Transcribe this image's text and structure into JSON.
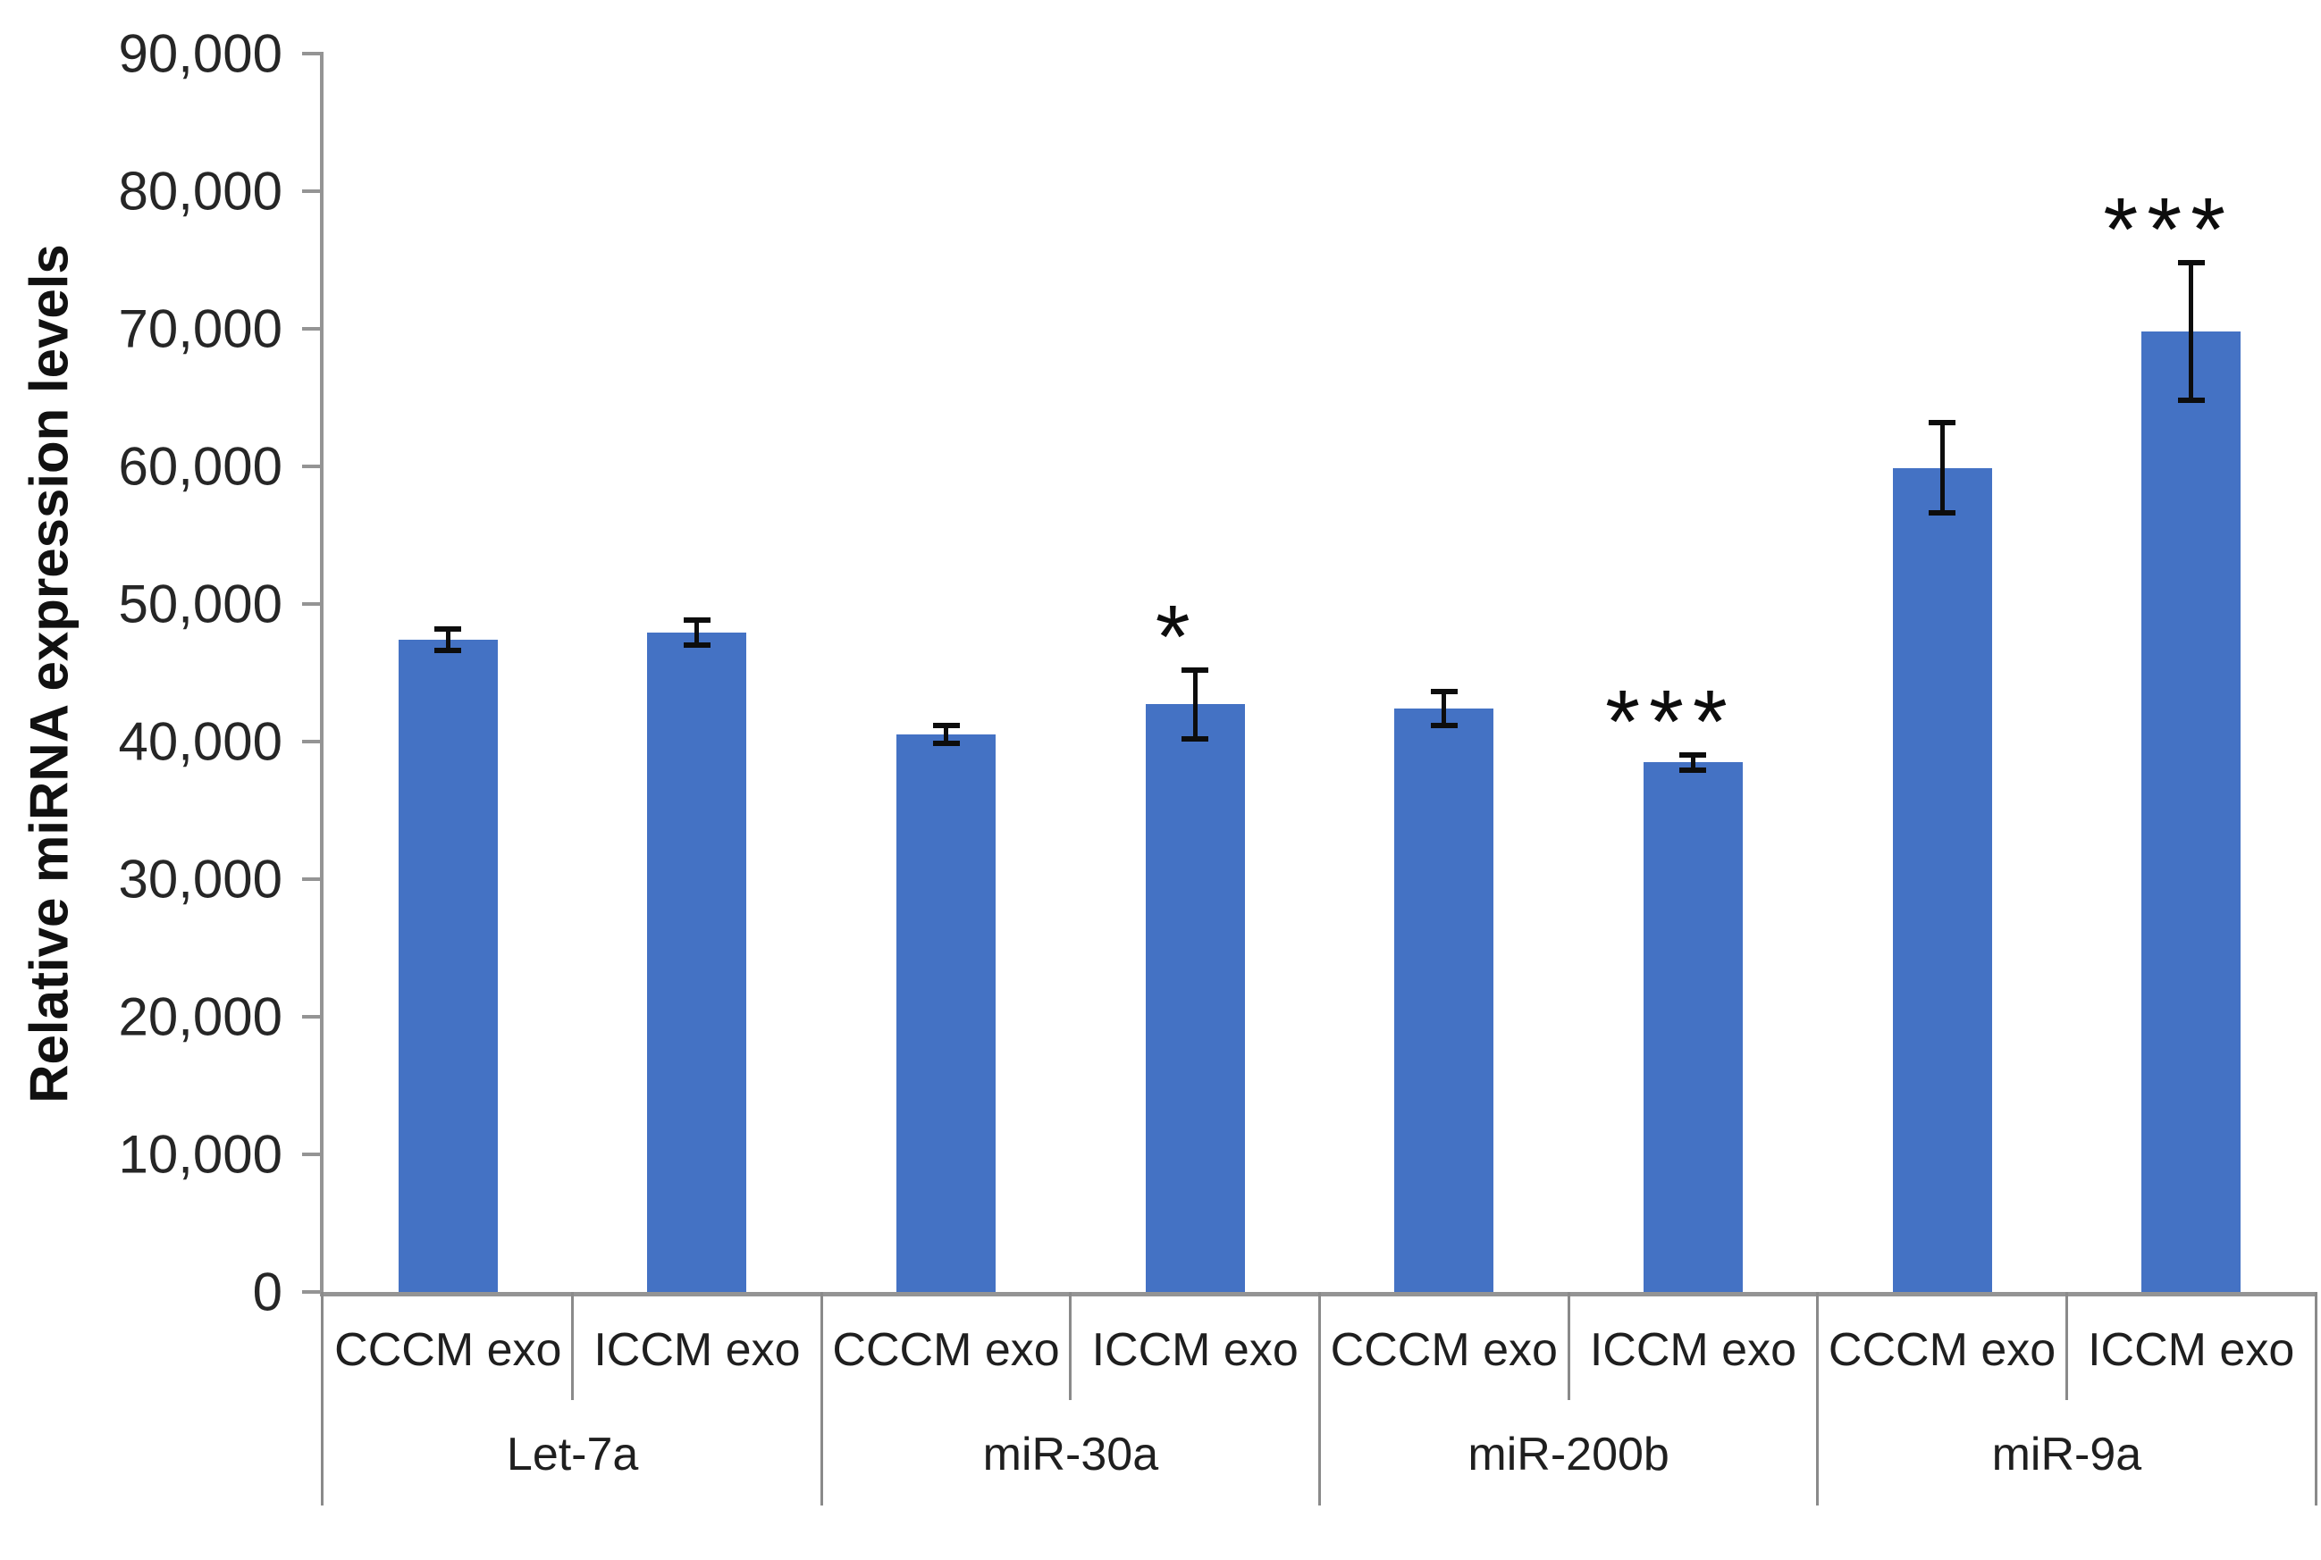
{
  "chart_data": {
    "type": "bar",
    "title": "",
    "xlabel": "",
    "ylabel": "Relative miRNA expression levels",
    "ylim": [
      0,
      90000
    ],
    "ytick_step": 10000,
    "ytick_labels": [
      "0",
      "10,000",
      "20,000",
      "30,000",
      "40,000",
      "50,000",
      "60,000",
      "70,000",
      "80,000",
      "90,000"
    ],
    "grid": "off",
    "legend": "none",
    "bar_color": "#4472C4",
    "error_bar_color": "#000000",
    "axis_color": "#949494",
    "significance_note_symbols": [
      "*",
      "***"
    ],
    "groups": [
      {
        "label": "Let-7a",
        "bars": [
          {
            "condition": "CCCM exo",
            "value": 47400,
            "error": 800,
            "sig": ""
          },
          {
            "condition": "ICCM exo",
            "value": 47900,
            "error": 900,
            "sig": ""
          }
        ]
      },
      {
        "label": "miR-30a",
        "bars": [
          {
            "condition": "CCCM exo",
            "value": 40500,
            "error": 650,
            "sig": ""
          },
          {
            "condition": "ICCM exo",
            "value": 42700,
            "error": 2500,
            "sig": "*"
          }
        ]
      },
      {
        "label": "miR-200b",
        "bars": [
          {
            "condition": "CCCM exo",
            "value": 42400,
            "error": 1250,
            "sig": ""
          },
          {
            "condition": "ICCM exo",
            "value": 38500,
            "error": 550,
            "sig": "***"
          }
        ]
      },
      {
        "label": "miR-9a",
        "bars": [
          {
            "condition": "CCCM exo",
            "value": 59900,
            "error": 3300,
            "sig": ""
          },
          {
            "condition": "ICCM exo",
            "value": 69800,
            "error": 5000,
            "sig": "***"
          }
        ]
      }
    ]
  }
}
